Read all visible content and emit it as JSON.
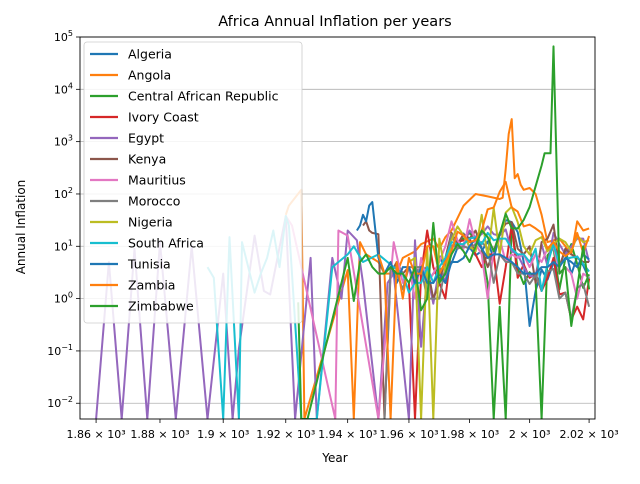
{
  "chart_data": {
    "type": "line",
    "title": "Africa Annual Inflation per years",
    "xlabel": "Year",
    "ylabel": "Annual Inflation",
    "x_scale": "log",
    "y_scale": "log",
    "xlim": [
      1855,
      2022
    ],
    "ylim": [
      0.005,
      100000
    ],
    "grid": "y-major",
    "legend_position": "upper-left",
    "x_ticks": [
      {
        "value": 1860,
        "label": "1.86 × 10³"
      },
      {
        "value": 1880,
        "label": "1.88 × 10³"
      },
      {
        "value": 1900,
        "label": "1.9 × 10³"
      },
      {
        "value": 1920,
        "label": "1.92 × 10³"
      },
      {
        "value": 1940,
        "label": "1.94 × 10³"
      },
      {
        "value": 1960,
        "label": "1.96 × 10³"
      },
      {
        "value": 1980,
        "label": "1.98 × 10³"
      },
      {
        "value": 2000,
        "label": "2 × 10³"
      },
      {
        "value": 2020,
        "label": "2.02 × 10³"
      }
    ],
    "y_ticks": [
      {
        "value": 0.01,
        "base": "10",
        "exp": "−2"
      },
      {
        "value": 0.1,
        "base": "10",
        "exp": "−1"
      },
      {
        "value": 1,
        "base": "10",
        "exp": "0"
      },
      {
        "value": 10,
        "base": "10",
        "exp": "1"
      },
      {
        "value": 100,
        "base": "10",
        "exp": "2"
      },
      {
        "value": 1000,
        "base": "10",
        "exp": "3"
      },
      {
        "value": 10000,
        "base": "10",
        "exp": "4"
      },
      {
        "value": 100000,
        "base": "10",
        "exp": "5"
      }
    ],
    "series": [
      {
        "name": "Algeria",
        "color": "#1f77b4",
        "x": [
          1970,
          1972,
          1974,
          1976,
          1978,
          1980,
          1982,
          1984,
          1986,
          1988,
          1990,
          1992,
          1994,
          1996,
          1998,
          2000,
          2002,
          2004,
          2006,
          2008,
          2010,
          2012,
          2014,
          2016,
          2018,
          2020
        ],
        "y": [
          6.6,
          3.7,
          4.7,
          9.4,
          17.5,
          9.5,
          6.7,
          8.1,
          12.4,
          5.9,
          16.7,
          31.7,
          29,
          18.7,
          5,
          0.3,
          1.4,
          3.6,
          2.3,
          4.9,
          3.9,
          8.9,
          2.9,
          6.4,
          4.3,
          2.4
        ]
      },
      {
        "name": "Angola",
        "color": "#ff7f0e",
        "x": [
          1920,
          1921,
          1925,
          1926,
          1940,
          1942,
          1944,
          1946,
          1950,
          1952,
          1956,
          1958,
          1962,
          1964,
          1968,
          1970,
          1972,
          1974,
          1978,
          1982,
          1986,
          1990,
          1991,
          1992,
          1993,
          1994,
          1995,
          1996,
          1997,
          1998,
          2000,
          2002,
          2004,
          2006,
          2008,
          2010,
          2012,
          2014,
          2016,
          2018,
          2020
        ],
        "y": [
          40,
          60,
          120,
          0.005,
          3.5,
          0.005,
          12,
          7,
          5,
          3,
          3,
          6,
          8,
          11,
          14,
          9,
          15,
          20,
          60,
          100,
          90,
          80,
          85,
          300,
          1400,
          2700,
          200,
          240,
          150,
          120,
          130,
          100,
          40,
          12,
          13,
          14,
          10,
          7,
          30,
          20,
          22
        ]
      },
      {
        "name": "Central African Republic",
        "color": "#2ca02c",
        "x": [
          1962,
          1964,
          1966,
          1968,
          1970,
          1972,
          1974,
          1976,
          1978,
          1980,
          1982,
          1984,
          1986,
          1988,
          1990,
          1992,
          1994,
          1996,
          1998,
          2000,
          2002,
          2004,
          2006,
          2008,
          2010,
          2012,
          2014,
          2016,
          2018,
          2020
        ],
        "y": [
          3,
          4,
          2,
          3,
          4,
          2,
          10,
          12,
          14,
          18,
          13,
          9,
          2,
          0.005,
          0.7,
          0.005,
          25,
          3.7,
          1.9,
          3.2,
          2.3,
          0.005,
          6.7,
          9.3,
          1.5,
          5.9,
          11,
          4.6,
          1.6,
          2.9
        ]
      },
      {
        "name": "Ivory Coast",
        "color": "#d62728",
        "x": [
          1960,
          1962,
          1964,
          1966,
          1968,
          1970,
          1972,
          1974,
          1976,
          1978,
          1980,
          1982,
          1984,
          1986,
          1988,
          1990,
          1992,
          1994,
          1996,
          1998,
          2000,
          2002,
          2004,
          2006,
          2008,
          2010,
          2012,
          2014,
          2016,
          2018,
          2020
        ],
        "y": [
          2,
          0.005,
          3,
          20,
          4,
          2,
          1,
          10,
          12,
          13,
          14,
          7,
          4,
          7,
          7,
          0.8,
          4,
          26,
          2.5,
          4.5,
          2.5,
          3,
          1.4,
          2.5,
          6,
          1.2,
          1.3,
          0.4,
          0.7,
          0.4,
          2.4
        ]
      },
      {
        "name": "Egypt",
        "color": "#9467bd",
        "x": [
          1860,
          1864,
          1868,
          1872,
          1876,
          1880,
          1885,
          1890,
          1895,
          1900,
          1903,
          1905,
          1910,
          1913,
          1915,
          1920,
          1923,
          1928,
          1930,
          1935,
          1938,
          1940,
          1943,
          1945,
          1950,
          1953,
          1955,
          1960,
          1962,
          1964,
          1966,
          1968,
          1970,
          1972,
          1974,
          1976,
          1978,
          1980,
          1982,
          1984,
          1986,
          1988,
          1990,
          1992,
          1994,
          1996,
          1998,
          2000,
          2002,
          2004,
          2006,
          2008,
          2010,
          2012,
          2014,
          2016,
          2018,
          2020
        ],
        "y": [
          0.005,
          5,
          0.005,
          9,
          0.005,
          12,
          0.005,
          10,
          0.005,
          3,
          0.005,
          0.11,
          16,
          1.4,
          1.2,
          38,
          0.005,
          6,
          0.005,
          6,
          1,
          20,
          13,
          2,
          0.005,
          2,
          3,
          0.005,
          13,
          0.12,
          3,
          0.8,
          3.8,
          2.1,
          10,
          10,
          11,
          20,
          15,
          17,
          24,
          17,
          16,
          21,
          8,
          7,
          4,
          2.7,
          2.7,
          11,
          4.2,
          18,
          11,
          7,
          10,
          14,
          14,
          5
        ]
      },
      {
        "name": "Kenya",
        "color": "#8c564b",
        "x": [
          1945,
          1946,
          1947,
          1948,
          1950,
          1952,
          1954,
          1956,
          1958,
          1960,
          1962,
          1964,
          1966,
          1968,
          1970,
          1972,
          1974,
          1976,
          1978,
          1980,
          1982,
          1984,
          1986,
          1988,
          1990,
          1992,
          1994,
          1996,
          1998,
          2000,
          2002,
          2004,
          2006,
          2008,
          2010,
          2012,
          2014,
          2016,
          2018,
          2020
        ],
        "y": [
          25,
          30,
          20,
          18,
          17,
          0.005,
          3,
          5,
          3,
          4,
          2,
          3.5,
          4,
          1,
          2,
          6,
          18,
          11,
          17,
          14,
          20,
          9,
          4,
          8,
          18,
          27,
          29,
          9,
          7,
          10,
          2,
          12,
          14,
          26,
          4,
          9,
          7,
          6,
          5,
          5
        ]
      },
      {
        "name": "Mauritius",
        "color": "#e377c2",
        "x": [
          1920,
          1922,
          1936,
          1937,
          1940,
          1950,
          1955,
          1958,
          1960,
          1962,
          1964,
          1966,
          1968,
          1970,
          1972,
          1974,
          1976,
          1978,
          1980,
          1982,
          1984,
          1986,
          1988,
          1990,
          1992,
          1994,
          1996,
          1998,
          2000,
          2002,
          2004,
          2006,
          2008,
          2010,
          2012,
          2014,
          2016,
          2018,
          2020
        ],
        "y": [
          38,
          25,
          0.005,
          20,
          16,
          0.005,
          12,
          2,
          4,
          1,
          6,
          2,
          3,
          5,
          10,
          30,
          13,
          9,
          33,
          11,
          7,
          1,
          9,
          14,
          5,
          7,
          6,
          7,
          4,
          7,
          5,
          9,
          10,
          3,
          4,
          3,
          1,
          3,
          2.5
        ]
      },
      {
        "name": "Morocco",
        "color": "#7f7f7f",
        "x": [
          1952,
          1954,
          1956,
          1958,
          1960,
          1962,
          1964,
          1966,
          1968,
          1970,
          1972,
          1974,
          1976,
          1978,
          1980,
          1982,
          1984,
          1986,
          1988,
          1990,
          1992,
          1994,
          1996,
          1998,
          2000,
          2002,
          2004,
          2006,
          2008,
          2010,
          2012,
          2014,
          2016,
          2018,
          2020
        ],
        "y": [
          0.005,
          4,
          3,
          1.5,
          4,
          4,
          4,
          1,
          1,
          1,
          4,
          17,
          9,
          10,
          9,
          11,
          12,
          9,
          2,
          7,
          5,
          5,
          3,
          3,
          1.9,
          2.8,
          1.5,
          3.3,
          3.7,
          1,
          1.3,
          0.4,
          1.6,
          1.9,
          0.7
        ]
      },
      {
        "name": "Nigeria",
        "color": "#bcbd22",
        "x": [
          1960,
          1962,
          1964,
          1966,
          1968,
          1970,
          1972,
          1974,
          1976,
          1978,
          1980,
          1982,
          1984,
          1986,
          1988,
          1990,
          1992,
          1994,
          1996,
          1998,
          2000,
          2002,
          2004,
          2006,
          2008,
          2010,
          2012,
          2014,
          2016,
          2018,
          2020
        ],
        "y": [
          5,
          6,
          0.005,
          10,
          0.005,
          14,
          3,
          13,
          24,
          16,
          10,
          8,
          40,
          6,
          54,
          7,
          44,
          57,
          29,
          10,
          7,
          13,
          15,
          8,
          11,
          14,
          12,
          8,
          16,
          12,
          13
        ]
      },
      {
        "name": "South Africa",
        "color": "#17becf",
        "x": [
          1895,
          1897,
          1900,
          1902,
          1905,
          1906,
          1910,
          1912,
          1914,
          1916,
          1918,
          1920,
          1921,
          1925,
          1930,
          1935,
          1940,
          1942,
          1945,
          1950,
          1955,
          1958,
          1960,
          1962,
          1964,
          1966,
          1968,
          1970,
          1972,
          1974,
          1976,
          1978,
          1980,
          1982,
          1984,
          1986,
          1988,
          1990,
          1992,
          1994,
          1996,
          1998,
          2000,
          2002,
          2004,
          2006,
          2008,
          2010,
          2012,
          2014,
          2016,
          2018,
          2020
        ],
        "y": [
          4,
          2.5,
          0.005,
          15,
          0.005,
          12,
          1.3,
          3,
          6,
          20,
          4,
          38,
          25,
          0.005,
          0.005,
          4,
          7,
          10,
          5,
          7,
          4,
          3,
          1.3,
          2,
          2,
          4,
          2,
          4,
          6,
          12,
          11,
          11,
          14,
          15,
          11,
          18,
          13,
          14,
          14,
          9,
          7,
          7,
          5,
          9,
          1.4,
          4.6,
          11,
          4.3,
          5.7,
          6.1,
          6.3,
          4.6,
          3.3
        ]
      },
      {
        "name": "Tunisia",
        "color": "#1f77b4",
        "x": [
          1943,
          1944,
          1945,
          1946,
          1947,
          1948,
          1950,
          1952,
          1954,
          1956,
          1958,
          1960,
          1962,
          1964,
          1966,
          1968,
          1970,
          1972,
          1974,
          1976,
          1978,
          1980,
          1982,
          1984,
          1986,
          1988,
          1990,
          1992,
          1994,
          1996,
          1998,
          2000,
          2002,
          2004,
          2006,
          2008,
          2010,
          2012,
          2014,
          2016,
          2018,
          2020
        ],
        "y": [
          20,
          25,
          40,
          30,
          60,
          70,
          6,
          3,
          5,
          2,
          4,
          4,
          2,
          4,
          2,
          2,
          3,
          2,
          5,
          5,
          6,
          10,
          14,
          9,
          6,
          7,
          7,
          6,
          5,
          4,
          3,
          3,
          3,
          4,
          4,
          5,
          4,
          6,
          5,
          4,
          7,
          5.6
        ]
      },
      {
        "name": "Zambia",
        "color": "#ff7f0e",
        "x": [
          1950,
          1952,
          1954,
          1956,
          1958,
          1960,
          1962,
          1964,
          1966,
          1968,
          1970,
          1972,
          1974,
          1976,
          1978,
          1980,
          1982,
          1984,
          1986,
          1988,
          1990,
          1992,
          1994,
          1996,
          1998,
          2000,
          2002,
          2004,
          2006,
          2008,
          2010,
          2012,
          2014,
          2016,
          2018,
          2020
        ],
        "y": [
          7,
          3,
          0.005,
          5,
          1,
          6,
          3,
          3,
          10,
          10,
          3,
          5,
          8,
          19,
          16,
          12,
          13,
          20,
          51,
          55,
          110,
          170,
          55,
          46,
          24,
          26,
          22,
          18,
          9,
          12,
          8,
          6.5,
          7.8,
          18,
          7.5,
          15.7
        ]
      },
      {
        "name": "Zimbabwe",
        "color": "#2ca02c",
        "x": [
          1924,
          1925,
          1926,
          1927,
          1940,
          1942,
          1944,
          1946,
          1948,
          1950,
          1952,
          1954,
          1956,
          1958,
          1960,
          1962,
          1964,
          1966,
          1968,
          1970,
          1972,
          1974,
          1976,
          1978,
          1980,
          1982,
          1984,
          1986,
          1988,
          1990,
          1992,
          1994,
          1996,
          1998,
          2000,
          2002,
          2004,
          2005,
          2006,
          2007,
          2008,
          2010,
          2012,
          2014,
          2016,
          2018,
          2020
        ],
        "y": [
          0.85,
          0.005,
          0.005,
          0.005,
          6,
          0.9,
          5,
          7,
          4,
          3,
          3,
          4,
          3,
          3,
          2,
          4,
          0.6,
          1,
          28,
          2,
          3,
          7,
          11,
          8,
          5,
          10,
          20,
          15,
          8,
          17,
          42,
          22,
          22,
          32,
          56,
          140,
          350,
          600,
          600,
          600,
          66000,
          3,
          4,
          0.3,
          1.6,
          10,
          1.5
        ]
      }
    ]
  }
}
